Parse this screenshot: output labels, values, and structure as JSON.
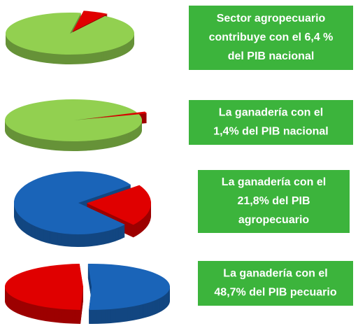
{
  "chart_data": [
    {
      "type": "pie",
      "title_lines": [
        "Sector agropecuario",
        "contribuye con el 6,4 %",
        "del PIB nacional"
      ],
      "values": [
        6.4,
        93.6
      ],
      "colors": [
        "#e00000",
        "#92d050"
      ]
    },
    {
      "type": "pie",
      "title_lines": [
        "La ganadería con el",
        "1,4% del PIB nacional"
      ],
      "values": [
        1.4,
        98.6
      ],
      "colors": [
        "#e00000",
        "#92d050"
      ]
    },
    {
      "type": "pie",
      "title_lines": [
        "La ganadería con el",
        "21,8% del PIB",
        "agropecuario"
      ],
      "values": [
        21.8,
        78.2
      ],
      "colors": [
        "#e00000",
        "#1a64b8"
      ]
    },
    {
      "type": "pie",
      "title_lines": [
        "La ganadería con el",
        "48,7% del PIB pecuario"
      ],
      "values": [
        48.7,
        51.3
      ],
      "colors": [
        "#e00000",
        "#1a64b8"
      ]
    }
  ]
}
